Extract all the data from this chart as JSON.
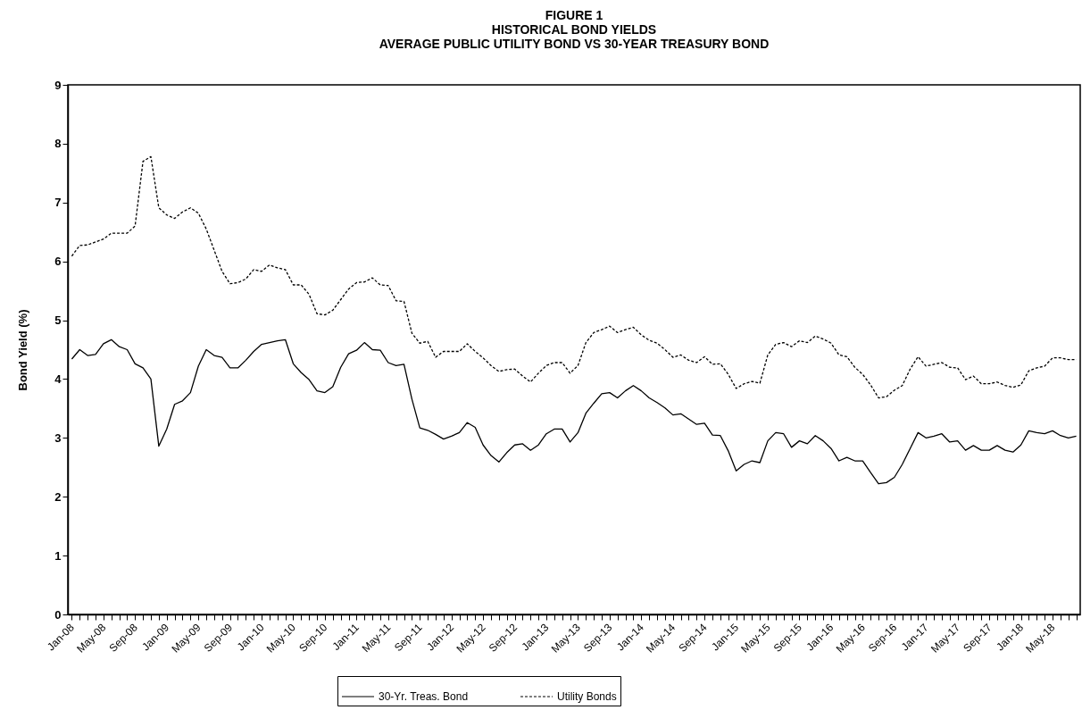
{
  "chart_data": {
    "type": "line",
    "title": "FIGURE 1",
    "subtitle": "HISTORICAL BOND YIELDS\nAVERAGE PUBLIC UTILITY BOND VS 30-YEAR TREASURY BOND",
    "ylabel": "Bond Yield (%)",
    "categories": [
      "Jan-08",
      null,
      null,
      null,
      "May-08",
      null,
      null,
      null,
      "Sep-08",
      null,
      null,
      null,
      "Jan-09",
      null,
      null,
      null,
      "May-09",
      null,
      null,
      null,
      "Sep-09",
      null,
      null,
      null,
      "Jan-10",
      null,
      null,
      null,
      "May-10",
      null,
      null,
      null,
      "Sep-10",
      null,
      null,
      null,
      "Jan-11",
      null,
      null,
      null,
      "May-11",
      null,
      null,
      null,
      "Sep-11",
      null,
      null,
      null,
      "Jan-12",
      null,
      null,
      null,
      "May-12",
      null,
      null,
      null,
      "Sep-12",
      null,
      null,
      null,
      "Jan-13",
      null,
      null,
      null,
      "May-13",
      null,
      null,
      null,
      "Sep-13",
      null,
      null,
      null,
      "Jan-14",
      null,
      null,
      null,
      "May-14",
      null,
      null,
      null,
      "Sep-14",
      null,
      null,
      null,
      "Jan-15",
      null,
      null,
      null,
      "May-15",
      null,
      null,
      null,
      "Sep-15",
      null,
      null,
      null,
      "Jan-16",
      null,
      null,
      null,
      "May-16",
      null,
      null,
      null,
      "Sep-16",
      null,
      null,
      null,
      "Jan-17",
      null,
      null,
      null,
      "May-17",
      null,
      null,
      null,
      "Sep-17",
      null,
      null,
      null,
      "Jan-18",
      null,
      null,
      null,
      "May-18",
      null,
      null,
      null
    ],
    "series": [
      {
        "name": "30-Yr. Treas. Bond",
        "color": "#000000",
        "line_style": "solid",
        "values": [
          4.34,
          4.5,
          4.4,
          4.42,
          4.6,
          4.67,
          4.55,
          4.5,
          4.26,
          4.19,
          4.0,
          2.86,
          3.15,
          3.57,
          3.63,
          3.77,
          4.22,
          4.5,
          4.4,
          4.37,
          4.19,
          4.19,
          4.32,
          4.47,
          4.59,
          4.62,
          4.65,
          4.67,
          4.26,
          4.11,
          3.99,
          3.8,
          3.77,
          3.87,
          4.2,
          4.43,
          4.49,
          4.62,
          4.5,
          4.49,
          4.28,
          4.23,
          4.25,
          3.66,
          3.17,
          3.13,
          3.06,
          2.98,
          3.03,
          3.09,
          3.26,
          3.18,
          2.88,
          2.7,
          2.59,
          2.75,
          2.88,
          2.9,
          2.79,
          2.88,
          3.07,
          3.15,
          3.15,
          2.93,
          3.09,
          3.42,
          3.59,
          3.75,
          3.77,
          3.68,
          3.8,
          3.89,
          3.8,
          3.68,
          3.6,
          3.51,
          3.39,
          3.41,
          3.32,
          3.23,
          3.25,
          3.05,
          3.04,
          2.78,
          2.44,
          2.55,
          2.61,
          2.58,
          2.95,
          3.09,
          3.07,
          2.84,
          2.95,
          2.9,
          3.04,
          2.95,
          2.82,
          2.61,
          2.67,
          2.61,
          2.61,
          2.41,
          2.22,
          2.24,
          2.33,
          2.55,
          2.82,
          3.09,
          3.0,
          3.03,
          3.07,
          2.93,
          2.95,
          2.79,
          2.87,
          2.79,
          2.79,
          2.87,
          2.79,
          2.76,
          2.88,
          3.12,
          3.09,
          3.07,
          3.12,
          3.04,
          3.0,
          3.03
        ]
      },
      {
        "name": "Utility Bonds",
        "color": "#000000",
        "line_style": "dashed",
        "values": [
          6.09,
          6.27,
          6.28,
          6.33,
          6.38,
          6.48,
          6.48,
          6.48,
          6.6,
          7.7,
          7.78,
          6.91,
          6.79,
          6.73,
          6.84,
          6.91,
          6.82,
          6.55,
          6.19,
          5.83,
          5.62,
          5.64,
          5.7,
          5.86,
          5.83,
          5.94,
          5.89,
          5.86,
          5.6,
          5.6,
          5.44,
          5.11,
          5.09,
          5.17,
          5.35,
          5.53,
          5.64,
          5.65,
          5.72,
          5.6,
          5.59,
          5.33,
          5.32,
          4.78,
          4.61,
          4.64,
          4.37,
          4.47,
          4.47,
          4.47,
          4.6,
          4.47,
          4.36,
          4.23,
          4.13,
          4.16,
          4.17,
          4.05,
          3.95,
          4.1,
          4.23,
          4.28,
          4.28,
          4.1,
          4.23,
          4.62,
          4.79,
          4.84,
          4.9,
          4.79,
          4.84,
          4.88,
          4.75,
          4.66,
          4.61,
          4.5,
          4.37,
          4.41,
          4.32,
          4.28,
          4.38,
          4.25,
          4.26,
          4.08,
          3.84,
          3.92,
          3.96,
          3.93,
          4.41,
          4.59,
          4.62,
          4.55,
          4.65,
          4.62,
          4.73,
          4.68,
          4.61,
          4.41,
          4.38,
          4.2,
          4.08,
          3.9,
          3.68,
          3.7,
          3.81,
          3.89,
          4.17,
          4.38,
          4.22,
          4.25,
          4.28,
          4.2,
          4.19,
          3.99,
          4.05,
          3.92,
          3.92,
          3.95,
          3.89,
          3.86,
          3.9,
          4.14,
          4.19,
          4.22,
          4.36,
          4.36,
          4.33,
          4.33
        ]
      }
    ],
    "ylim": [
      0,
      9
    ],
    "yticks": [
      0,
      1,
      2,
      3,
      4,
      5,
      6,
      7,
      8,
      9
    ],
    "legend": "bottom"
  }
}
